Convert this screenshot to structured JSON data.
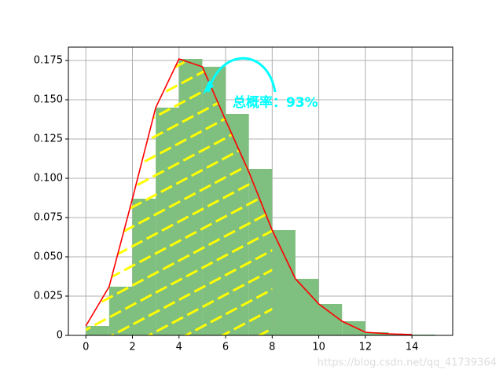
{
  "chart_data": {
    "type": "histogram",
    "bins": [
      0,
      1,
      2,
      3,
      4,
      5,
      6,
      7,
      8,
      9,
      10,
      11,
      12,
      13,
      14,
      15
    ],
    "values": [
      0.006,
      0.031,
      0.087,
      0.145,
      0.176,
      0.171,
      0.141,
      0.106,
      0.067,
      0.036,
      0.02,
      0.009,
      0.002,
      0.001,
      0.0005
    ],
    "color": "#7fbf7f",
    "line": {
      "type": "line",
      "x": [
        0,
        1,
        2,
        3,
        4,
        5,
        6,
        7,
        8,
        9,
        10,
        11,
        12,
        13,
        14
      ],
      "values": [
        0.006,
        0.031,
        0.087,
        0.145,
        0.176,
        0.171,
        0.137,
        0.104,
        0.067,
        0.036,
        0.02,
        0.009,
        0.002,
        0.001,
        0.0005
      ],
      "color": "#ff0000"
    },
    "xlim": [
      -0.75,
      15.75
    ],
    "xticks": [
      0,
      2,
      4,
      6,
      8,
      10,
      12,
      14
    ],
    "ylim": [
      0,
      0.1835
    ],
    "yticks": [
      0,
      {
        "value": 0.025,
        "label": "0.025"
      },
      {
        "value": 0.05,
        "label": "0.050"
      },
      {
        "value": 0.075,
        "label": "0.075"
      },
      {
        "value": 0.1,
        "label": "0.100"
      },
      {
        "value": 0.125,
        "label": "0.125"
      },
      {
        "value": 0.15,
        "label": "0.150"
      },
      {
        "value": 0.175,
        "label": "0.175"
      }
    ],
    "grid": true,
    "annotation": "总概率：93%",
    "watermark": "https://blog.csdn.net/qq_41739364"
  }
}
